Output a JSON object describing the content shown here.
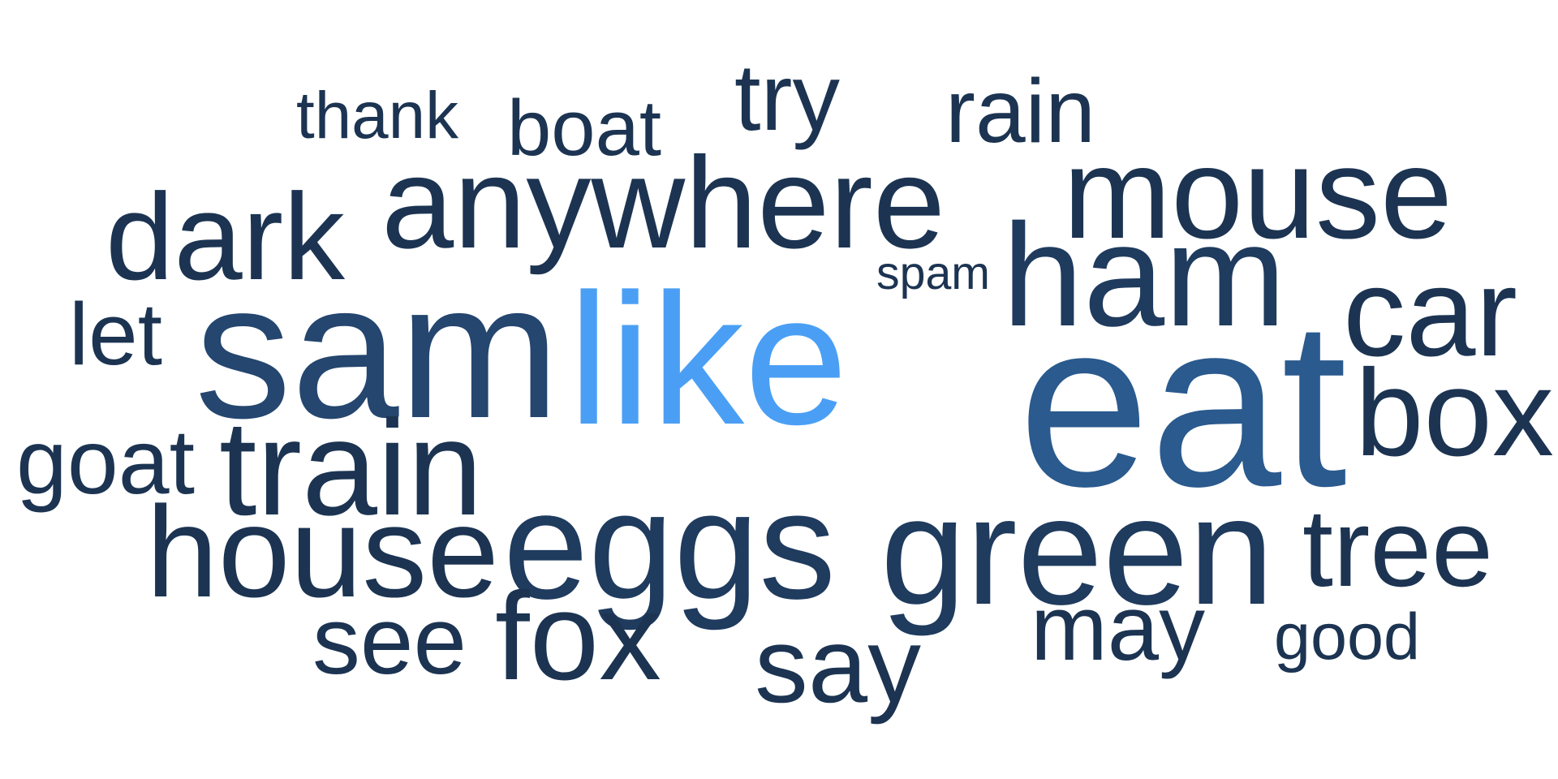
{
  "words": [
    {
      "id": "like",
      "text": "like",
      "color": "#4a9ff5"
    },
    {
      "id": "eat",
      "text": "eat",
      "color": "#2a5a8e"
    },
    {
      "id": "sam",
      "text": "sam",
      "color": "#24466f"
    },
    {
      "id": "green",
      "text": "green",
      "color": "#1f3b5e"
    },
    {
      "id": "eggs",
      "text": "eggs",
      "color": "#1f3b5e"
    },
    {
      "id": "ham",
      "text": "ham",
      "color": "#1f3b5e"
    },
    {
      "id": "anywhere",
      "text": "anywhere",
      "color": "#1c3452"
    },
    {
      "id": "house",
      "text": "house",
      "color": "#1c3452"
    },
    {
      "id": "train",
      "text": "train",
      "color": "#1c3452"
    },
    {
      "id": "mouse",
      "text": "mouse",
      "color": "#1c3452"
    },
    {
      "id": "box",
      "text": "box",
      "color": "#1c3452"
    },
    {
      "id": "dark",
      "text": "dark",
      "color": "#1c3452"
    },
    {
      "id": "car",
      "text": "car",
      "color": "#1c3452"
    },
    {
      "id": "tree",
      "text": "tree",
      "color": "#1c3452"
    },
    {
      "id": "fox",
      "text": "fox",
      "color": "#1c3452"
    },
    {
      "id": "may",
      "text": "may",
      "color": "#1c3452"
    },
    {
      "id": "say",
      "text": "say",
      "color": "#1c3452"
    },
    {
      "id": "rain",
      "text": "rain",
      "color": "#1c3452"
    },
    {
      "id": "try",
      "text": "try",
      "color": "#1c3452"
    },
    {
      "id": "boat",
      "text": "boat",
      "color": "#1c3452"
    },
    {
      "id": "let",
      "text": "let",
      "color": "#1c3452"
    },
    {
      "id": "goat",
      "text": "goat",
      "color": "#1c3452"
    },
    {
      "id": "see",
      "text": "see",
      "color": "#1c3452"
    },
    {
      "id": "thank",
      "text": "thank",
      "color": "#1c3452"
    },
    {
      "id": "good",
      "text": "good",
      "color": "#1c3452"
    },
    {
      "id": "spam",
      "text": "spam",
      "color": "#1c3452"
    }
  ]
}
